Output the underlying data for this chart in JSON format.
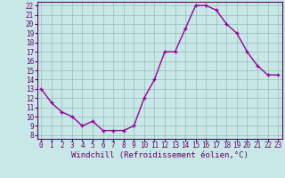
{
  "x": [
    0,
    1,
    2,
    3,
    4,
    5,
    6,
    7,
    8,
    9,
    10,
    11,
    12,
    13,
    14,
    15,
    16,
    17,
    18,
    19,
    20,
    21,
    22,
    23
  ],
  "y": [
    13,
    11.5,
    10.5,
    10,
    9,
    9.5,
    8.5,
    8.5,
    8.5,
    9,
    12,
    14,
    17,
    17,
    19.5,
    22,
    22,
    21.5,
    20,
    19,
    17,
    15.5,
    14.5,
    14.5
  ],
  "line_color": "#990099",
  "marker": "+",
  "bg_color": "#c8e8e8",
  "grid_color": "#99bbbb",
  "xlabel": "Windchill (Refroidissement éolien,°C)",
  "ylim": [
    8,
    22
  ],
  "xlim": [
    0,
    23
  ],
  "yticks": [
    8,
    9,
    10,
    11,
    12,
    13,
    14,
    15,
    16,
    17,
    18,
    19,
    20,
    21,
    22
  ],
  "xticks": [
    0,
    1,
    2,
    3,
    4,
    5,
    6,
    7,
    8,
    9,
    10,
    11,
    12,
    13,
    14,
    15,
    16,
    17,
    18,
    19,
    20,
    21,
    22,
    23
  ],
  "tick_color": "#660066",
  "label_color": "#660066",
  "font_size": 5.5,
  "xlabel_font_size": 6.5,
  "marker_size": 3.5,
  "line_width": 1.0
}
